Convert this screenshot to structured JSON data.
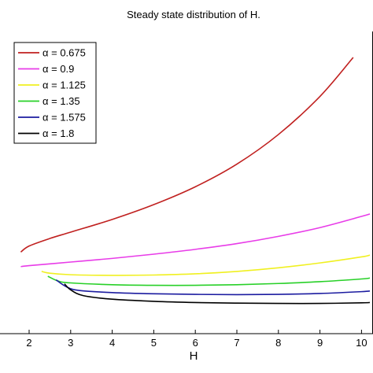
{
  "chart_data": {
    "type": "line",
    "title": "Steady state distribution of H.",
    "xlabel": "H",
    "ylabel": "",
    "xlim": [
      1.0,
      10.2
    ],
    "ylim": [
      0,
      1.0
    ],
    "xticks": [
      "2",
      "3",
      "4",
      "5",
      "6",
      "7",
      "8",
      "9",
      "10"
    ],
    "grid": false,
    "legend_position": "top-left",
    "series": [
      {
        "name": "α = 0.675",
        "color": "#c0201f",
        "x": [
          1.8,
          2.0,
          2.5,
          3.0,
          4.0,
          5.0,
          6.0,
          7.0,
          8.0,
          9.0,
          9.8
        ],
        "y": [
          0.27,
          0.29,
          0.315,
          0.336,
          0.378,
          0.427,
          0.486,
          0.561,
          0.659,
          0.785,
          0.914
        ]
      },
      {
        "name": "α = 0.9",
        "color": "#e83ce8",
        "x": [
          1.8,
          2.0,
          3.0,
          4.0,
          5.0,
          6.0,
          7.0,
          8.0,
          9.0,
          10.0,
          10.2
        ],
        "y": [
          0.222,
          0.225,
          0.237,
          0.249,
          0.263,
          0.279,
          0.298,
          0.322,
          0.351,
          0.388,
          0.396
        ]
      },
      {
        "name": "α = 1.125",
        "color": "#f0f020",
        "x": [
          2.3,
          2.5,
          3.0,
          4.0,
          5.0,
          6.0,
          7.0,
          8.0,
          9.0,
          10.0,
          10.2
        ],
        "y": [
          0.206,
          0.2,
          0.195,
          0.193,
          0.194,
          0.198,
          0.206,
          0.218,
          0.234,
          0.254,
          0.26
        ]
      },
      {
        "name": "α = 1.35",
        "color": "#28d028",
        "x": [
          2.45,
          2.7,
          3.0,
          4.0,
          5.0,
          6.0,
          7.0,
          8.0,
          9.0,
          10.0,
          10.2
        ],
        "y": [
          0.19,
          0.174,
          0.168,
          0.162,
          0.16,
          0.16,
          0.162,
          0.166,
          0.172,
          0.181,
          0.184
        ]
      },
      {
        "name": "α = 1.575",
        "color": "#1c1ca0",
        "x": [
          2.65,
          2.9,
          3.2,
          4.0,
          5.0,
          6.0,
          7.0,
          8.0,
          9.0,
          10.0,
          10.2
        ],
        "y": [
          0.178,
          0.155,
          0.143,
          0.136,
          0.132,
          0.13,
          0.129,
          0.13,
          0.133,
          0.139,
          0.141
        ]
      },
      {
        "name": "α = 1.8",
        "color": "#000000",
        "x": [
          2.85,
          3.0,
          3.3,
          4.0,
          5.0,
          6.0,
          7.0,
          8.0,
          9.0,
          10.0,
          10.2
        ],
        "y": [
          0.165,
          0.145,
          0.126,
          0.114,
          0.107,
          0.103,
          0.101,
          0.1,
          0.1,
          0.102,
          0.103
        ]
      }
    ]
  }
}
